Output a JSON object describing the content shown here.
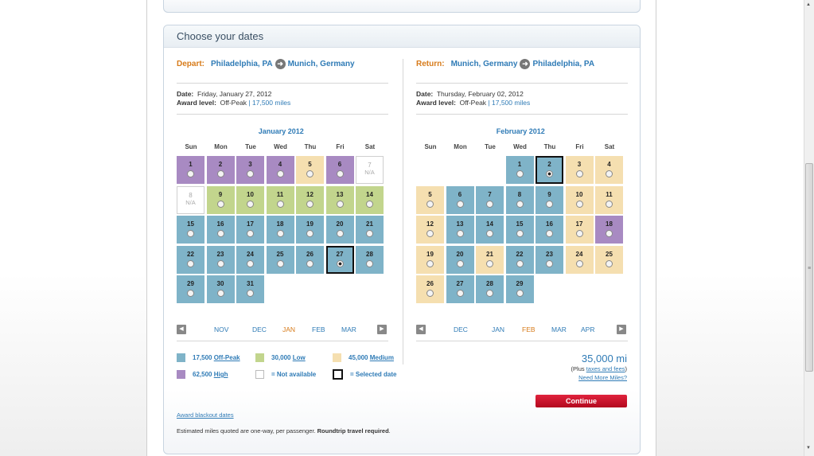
{
  "panel_title": "Choose your dates",
  "depart": {
    "label": "Depart:",
    "from": "Philadelphia, PA",
    "to": "Munich, Germany",
    "date_label": "Date:",
    "date_value": "Friday, January 27, 2012",
    "award_label": "Award level:",
    "award_value": "Off-Peak",
    "award_sep": "|",
    "miles": "17,500",
    "miles_unit": "miles"
  },
  "return": {
    "label": "Return:",
    "from": "Munich, Germany",
    "to": "Philadelphia, PA",
    "date_label": "Date:",
    "date_value": "Thursday, February 02, 2012",
    "award_label": "Award level:",
    "award_value": "Off-Peak",
    "award_sep": "|",
    "miles": "17,500",
    "miles_unit": "miles"
  },
  "weekdays": [
    "Sun",
    "Mon",
    "Tue",
    "Wed",
    "Thu",
    "Fri",
    "Sat"
  ],
  "na_text": "N/A",
  "calendars": [
    {
      "title": "January 2012",
      "start_dow": 0,
      "days": [
        {
          "d": "1",
          "l": "high"
        },
        {
          "d": "2",
          "l": "high"
        },
        {
          "d": "3",
          "l": "high"
        },
        {
          "d": "4",
          "l": "high"
        },
        {
          "d": "5",
          "l": "med"
        },
        {
          "d": "6",
          "l": "high"
        },
        {
          "d": "7",
          "l": "na"
        },
        {
          "d": "8",
          "l": "na"
        },
        {
          "d": "9",
          "l": "low"
        },
        {
          "d": "10",
          "l": "low"
        },
        {
          "d": "11",
          "l": "low"
        },
        {
          "d": "12",
          "l": "low"
        },
        {
          "d": "13",
          "l": "low"
        },
        {
          "d": "14",
          "l": "low"
        },
        {
          "d": "15",
          "l": "off"
        },
        {
          "d": "16",
          "l": "off"
        },
        {
          "d": "17",
          "l": "off"
        },
        {
          "d": "18",
          "l": "off"
        },
        {
          "d": "19",
          "l": "off"
        },
        {
          "d": "20",
          "l": "off"
        },
        {
          "d": "21",
          "l": "off"
        },
        {
          "d": "22",
          "l": "off"
        },
        {
          "d": "23",
          "l": "off"
        },
        {
          "d": "24",
          "l": "off"
        },
        {
          "d": "25",
          "l": "off"
        },
        {
          "d": "26",
          "l": "off"
        },
        {
          "d": "27",
          "l": "off",
          "sel": true
        },
        {
          "d": "28",
          "l": "off"
        },
        {
          "d": "29",
          "l": "off"
        },
        {
          "d": "30",
          "l": "off"
        },
        {
          "d": "31",
          "l": "off"
        }
      ],
      "nav": [
        "NOV",
        "DEC",
        "JAN",
        "FEB",
        "MAR"
      ],
      "nav_current": 2
    },
    {
      "title": "February 2012",
      "start_dow": 3,
      "days": [
        {
          "d": "1",
          "l": "off"
        },
        {
          "d": "2",
          "l": "off",
          "sel": true
        },
        {
          "d": "3",
          "l": "med"
        },
        {
          "d": "4",
          "l": "med"
        },
        {
          "d": "5",
          "l": "med"
        },
        {
          "d": "6",
          "l": "off"
        },
        {
          "d": "7",
          "l": "off"
        },
        {
          "d": "8",
          "l": "off"
        },
        {
          "d": "9",
          "l": "off"
        },
        {
          "d": "10",
          "l": "med"
        },
        {
          "d": "11",
          "l": "med"
        },
        {
          "d": "12",
          "l": "med"
        },
        {
          "d": "13",
          "l": "off"
        },
        {
          "d": "14",
          "l": "off"
        },
        {
          "d": "15",
          "l": "off"
        },
        {
          "d": "16",
          "l": "off"
        },
        {
          "d": "17",
          "l": "med"
        },
        {
          "d": "18",
          "l": "high"
        },
        {
          "d": "19",
          "l": "med"
        },
        {
          "d": "20",
          "l": "off"
        },
        {
          "d": "21",
          "l": "med"
        },
        {
          "d": "22",
          "l": "off"
        },
        {
          "d": "23",
          "l": "off"
        },
        {
          "d": "24",
          "l": "med"
        },
        {
          "d": "25",
          "l": "med"
        },
        {
          "d": "26",
          "l": "med"
        },
        {
          "d": "27",
          "l": "off"
        },
        {
          "d": "28",
          "l": "off"
        },
        {
          "d": "29",
          "l": "off"
        }
      ],
      "nav": [
        "DEC",
        "JAN",
        "FEB",
        "MAR",
        "APR"
      ],
      "nav_current": 2
    }
  ],
  "colors": {
    "off": "#7fb3c8",
    "low": "#c2d58d",
    "med": "#f5dfb0",
    "high": "#a88ac2",
    "accent_orange": "#d77b1a",
    "link_blue": "#2f7bb6",
    "continue_red": "#c8102e"
  },
  "legend": {
    "off_miles": "17,500",
    "off_name": "Off-Peak",
    "low_miles": "30,000",
    "low_name": "Low",
    "med_miles": "45,000",
    "med_name": "Medium",
    "high_miles": "62,500",
    "high_name": "High",
    "not_available": "= Not available",
    "selected_date": "= Selected date"
  },
  "total": {
    "miles": "35,000 mi",
    "plus_prefix": "(Plus ",
    "taxes_link": "taxes and fees",
    "plus_suffix": ")",
    "need_more": "Need More Miles?"
  },
  "continue_label": "Continue",
  "footer": {
    "blackout_link": "Award blackout dates",
    "note_prefix": "Estimated miles quoted are one-way, per passenger.",
    "note_bold": "Roundtrip travel required",
    "note_suffix": "."
  },
  "icons": {
    "route_arrow": "arrow-right-circle-icon",
    "nav_prev": "chevron-left-icon",
    "nav_next": "chevron-right-icon"
  }
}
